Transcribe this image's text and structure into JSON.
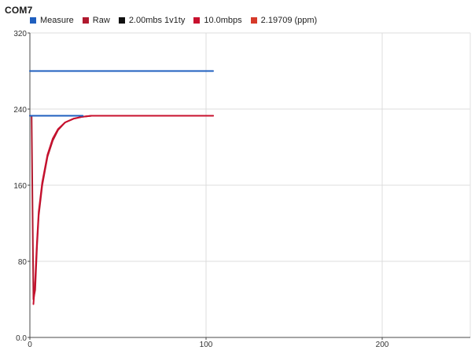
{
  "window": {
    "title": "COM7"
  },
  "legend": [
    {
      "label": "Measure",
      "color": "#1f5fbf"
    },
    {
      "label": "Raw",
      "color": "#b0192e"
    },
    {
      "label": "2.00mbs 1v1ty",
      "color": "#111111"
    },
    {
      "label": "10.0mbps",
      "color": "#c8102e"
    },
    {
      "label": "2.19709 (ppm)",
      "color": "#d63a2a"
    }
  ],
  "chart_data": {
    "type": "line",
    "title": "",
    "xlabel": "",
    "ylabel": "",
    "xlim": [
      0,
      250
    ],
    "ylim": [
      0,
      320
    ],
    "grid": true,
    "legend_position": "top-left",
    "x_ticks": [
      "0",
      "100",
      "200"
    ],
    "x_tick_values": [
      0,
      100,
      200
    ],
    "y_ticks": [
      "320",
      "240",
      "160",
      "80",
      "0.0"
    ],
    "y_tick_values": [
      320,
      240,
      160,
      80,
      0
    ],
    "series": [
      {
        "name": "Measure",
        "color": "#1f5fbf",
        "x": [
          0,
          104
        ],
        "y": [
          280,
          280
        ]
      },
      {
        "name": "Raw",
        "color": "#b0192e",
        "x": [
          0,
          1,
          2,
          3,
          4,
          5,
          7,
          10,
          13,
          16,
          20,
          25,
          30,
          35,
          40,
          50,
          60,
          70,
          80,
          90,
          104
        ],
        "y": [
          233,
          233,
          40,
          50,
          95,
          128,
          160,
          190,
          207,
          218,
          226,
          230,
          232,
          233,
          233,
          233,
          233,
          233,
          233,
          233,
          233
        ]
      },
      {
        "name": "10.0mbps",
        "color": "#c8102e",
        "x": [
          2,
          3,
          4,
          5,
          7,
          10,
          13,
          16,
          20,
          25,
          30,
          35,
          40,
          50,
          60,
          70,
          80,
          90,
          104
        ],
        "y": [
          35,
          60,
          100,
          132,
          163,
          192,
          209,
          219,
          226,
          230,
          232,
          233,
          233,
          233,
          233,
          233,
          233,
          233,
          233
        ]
      },
      {
        "name": "2.00mbs 1v1ty",
        "color": "#1f5fbf",
        "x": [
          0,
          30
        ],
        "y": [
          233,
          233
        ]
      }
    ]
  }
}
